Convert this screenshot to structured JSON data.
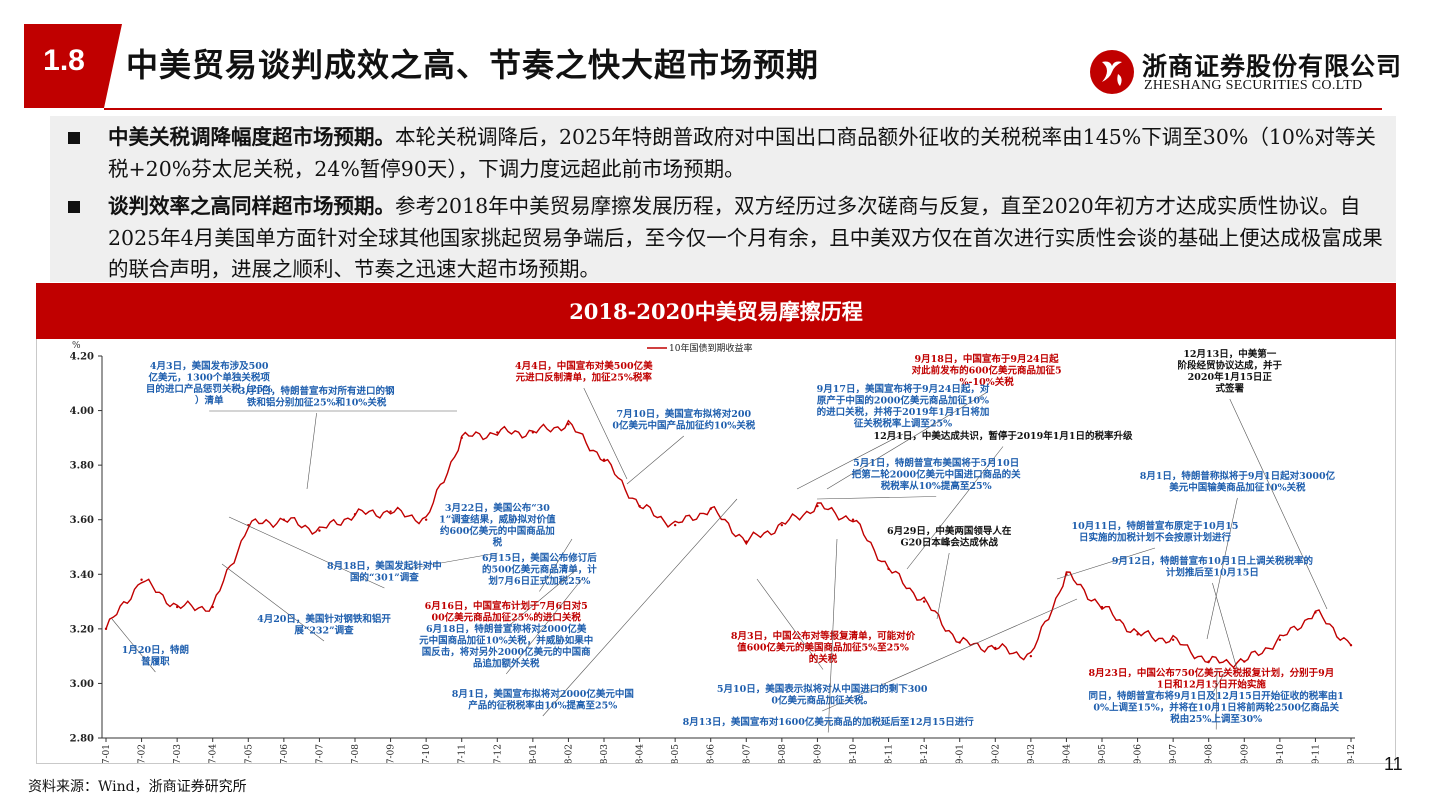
{
  "header": {
    "section_number": "1.8",
    "title": "中美贸易谈判成效之高、节奏之快大超市场预期",
    "logo_cn": "浙商证券股份有限公司",
    "logo_en": "ZHESHANG SECURITIES CO.LTD",
    "logo_icon": "zheshang-logo-icon",
    "accent_color": "#c00000"
  },
  "bullets": [
    {
      "bold": "中美关税调降幅度超市场预期。",
      "text": "本轮关税调降后，2025年特朗普政府对中国出口商品额外征收的关税税率由145%下调至30%（10%对等关税+20%芬太尼关税，24%暂停90天），下调力度远超此前市场预期。"
    },
    {
      "bold": "谈判效率之高同样超市场预期。",
      "text": "参考2018年中美贸易摩擦发展历程，双方经历过多次磋商与反复，直至2020年初方才达成实质性协议。自2025年4月美国单方面针对全球其他国家挑起贸易争端后，至今仅一个月有余，且中美双方仅在首次进行实质性会谈的基础上便达成极富成果的联合声明，进展之顺利、节奏之迅速大超市场预期。"
    }
  ],
  "chart_banner": "2018-2020中美贸易摩擦历程",
  "chart_data": {
    "type": "line",
    "ylabel": "%",
    "ylim": [
      2.8,
      4.2
    ],
    "yticks": [
      "4.20",
      "4.00",
      "3.80",
      "3.60",
      "3.40",
      "3.20",
      "3.00",
      "2.80"
    ],
    "x": [
      "17-01",
      "17-02",
      "17-03",
      "17-04",
      "17-05",
      "17-06",
      "17-07",
      "17-08",
      "17-09",
      "17-10",
      "17-11",
      "17-12",
      "18-01",
      "18-02",
      "18-03",
      "18-04",
      "18-05",
      "18-06",
      "18-07",
      "18-08",
      "18-09",
      "18-10",
      "18-11",
      "18-12",
      "19-01",
      "19-02",
      "19-03",
      "19-04",
      "19-05",
      "19-06",
      "19-07",
      "19-08",
      "19-09",
      "19-10",
      "19-11",
      "19-12"
    ],
    "series": [
      {
        "name": "10年国债到期收益率",
        "color": "#c00000",
        "values": [
          3.2,
          3.38,
          3.28,
          3.28,
          3.58,
          3.6,
          3.56,
          3.62,
          3.63,
          3.6,
          3.9,
          3.92,
          3.92,
          3.95,
          3.82,
          3.65,
          3.58,
          3.64,
          3.52,
          3.58,
          3.65,
          3.6,
          3.42,
          3.3,
          3.15,
          3.13,
          3.1,
          3.4,
          3.28,
          3.18,
          3.16,
          3.08,
          3.08,
          3.16,
          3.26,
          3.14
        ]
      }
    ],
    "annotations": [
      {
        "text": "4月3日，美国发布涉及500亿美元，1300个单独关税项目的进口产品惩罚关税（25%）清单",
        "color": "#1f5fae"
      },
      {
        "text": "3月1日，特朗普宣布对所有进口的钢铁和铝分别加征25%和10%关税",
        "color": "#1f5fae"
      },
      {
        "text": "4月4日，中国宣布对美500亿美元进口反制清单，加征25%税率",
        "color": "#c00000"
      },
      {
        "text": "7月10日，美国宣布拟将对2000亿美元中国产品加征约10%关税",
        "color": "#1f5fae"
      },
      {
        "text": "9月18日，中国宣布于9月24日起对此前发布的600亿美元商品加征5%-10%关税",
        "color": "#c00000"
      },
      {
        "text": "9月17日，美国宣布将于9月24日起，对原产于中国的2000亿美元商品加征10%的进口关税，并将于2019年1月1日将加征关税税率上调至25%",
        "color": "#1f5fae"
      },
      {
        "text": "12月13日，中美第一阶段经贸协议达成，并于2020年1月15日正式签署",
        "color": "#111111"
      },
      {
        "text": "12月1日，中美达成共识，暂停于2019年1月1日的税率升级",
        "color": "#111111"
      },
      {
        "text": "5月1日，特朗普宣布美国将于5月10日把第二轮2000亿美元中国进口商品的关税税率从10%提高至25%",
        "color": "#1f5fae"
      },
      {
        "text": "8月1日，特朗普称拟将于9月1日起对3000亿美元中国输美商品加征10%关税",
        "color": "#1f5fae"
      },
      {
        "text": "3月22日，美国公布“301”调查结果，威胁拟对价值约600亿美元的中国商品加税",
        "color": "#1f5fae"
      },
      {
        "text": "6月29日，中美两国领导人在G20日本峰会达成休战",
        "color": "#111111"
      },
      {
        "text": "10月11日，特朗普宣布原定于10月15日实施的加税计划不会按原计划进行",
        "color": "#1f5fae"
      },
      {
        "text": "8月18日，美国发起针对中国的“301”调查",
        "color": "#1f5fae"
      },
      {
        "text": "6月15日，美国公布修订后的500亿美元商品清单，计划7月6日正式加税25%",
        "color": "#1f5fae"
      },
      {
        "text": "9月12日，特朗普宣布10月1日上调关税税率的计划推后至10月15日",
        "color": "#1f5fae"
      },
      {
        "text": "6月16日，中国宣布计划于7月6日对500亿美元商品加征25%的进口关税",
        "color": "#c00000"
      },
      {
        "text": "6月18日，特朗普宣称将对2000亿美元中国商品加征10%关税，并威胁如果中国反击，将对另外2000亿美元的中国商品追加额外关税",
        "color": "#1f5fae"
      },
      {
        "text": "4月20日，美国针对钢铁和铝开展“232”调查",
        "color": "#1f5fae"
      },
      {
        "text": "1月20日，特朗普履职",
        "color": "#1f5fae"
      },
      {
        "text": "8月3日，中国公布对等报复清单，可能对价值600亿美元的美国商品加征5%至25%的关税",
        "color": "#c00000"
      },
      {
        "text": "8月23日，中国公布750亿美元关税报复计划，分别于9月1日和12月15日开始实施",
        "color": "#c00000"
      },
      {
        "text": "同日，特朗普宣布将9月1日及12月15日开始征收的税率由10%上调至15%，并将在10月1日将前两轮2500亿商品关税由25%上调至30%",
        "color": "#1f5fae"
      },
      {
        "text": "5月10日，美国表示拟将对从中国进口的剩下3000亿美元商品加征关税。",
        "color": "#1f5fae"
      },
      {
        "text": "8月1日，美国宣布拟将对2000亿美元中国产品的征税税率由10%提高至25%",
        "color": "#1f5fae"
      },
      {
        "text": "8月13日，美国宣布对1600亿美元商品的加税延后至12月15日进行",
        "color": "#1f5fae"
      }
    ]
  },
  "source": "资料来源：Wind，浙商证券研究所",
  "page_number": "11"
}
